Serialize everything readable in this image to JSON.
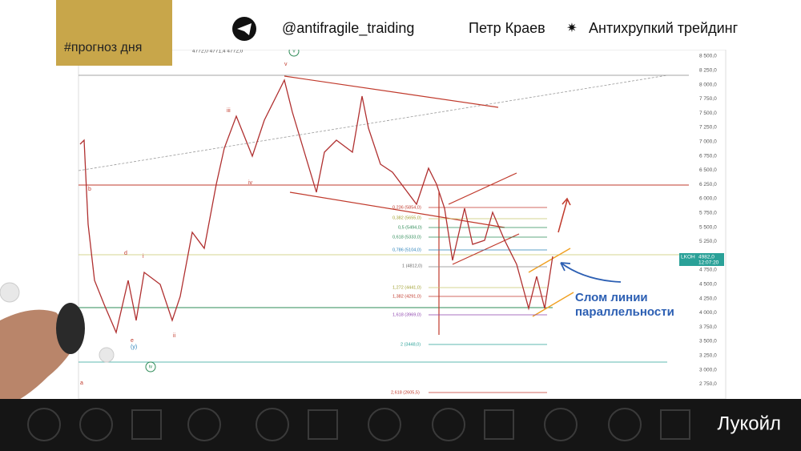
{
  "header": {
    "tag": "#прогноз дня",
    "handle": "@antifragile_traiding",
    "author": "Петр Краев",
    "brand": "Антихрупкий трейдинг"
  },
  "ohlc": "4772,0  4771,4  4772,0",
  "price_axis": [
    "8 500,0",
    "8 250,0",
    "8 000,0",
    "7 750,0",
    "7 500,0",
    "7 250,0",
    "7 000,0",
    "6 750,0",
    "6 500,0",
    "6 250,0",
    "6 000,0",
    "5 750,0",
    "5 500,0",
    "5 250,0",
    "4 750,0",
    "4 500,0",
    "4 250,0",
    "4 000,0",
    "3 750,0",
    "3 500,0",
    "3 250,0",
    "3 000,0",
    "2 750,0"
  ],
  "price_tag": {
    "ticker": "LKOH",
    "price": "4982,0",
    "time": "12:07:20"
  },
  "fib_levels": [
    "0,236 (5854,0)",
    "0,382 (5655,0)",
    "0,5 (5494,0)",
    "0,618 (5333,0)",
    "0,786 (5104,0)",
    "1 (4812,0)",
    "1,272 (4441,0)",
    "1,382 (4291,0)",
    "1,618 (3969,0)",
    "2 (3448,0)",
    "2,618 (2605,5)"
  ],
  "waves": [
    "v",
    "iii",
    "iv",
    "b",
    "d",
    "i",
    "ii",
    "e",
    "(y)",
    "a",
    "iv",
    "v"
  ],
  "annotation": [
    "Слом линии",
    "параллельности"
  ],
  "footer": "Лукойл"
}
